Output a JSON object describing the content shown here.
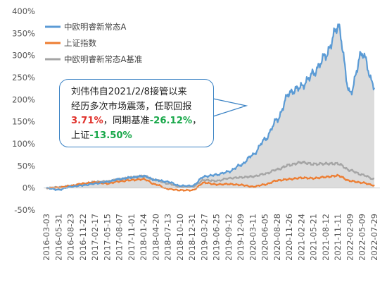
{
  "chart_data": {
    "type": "area",
    "title": "",
    "xlabel": "",
    "ylabel": "",
    "ylim": [
      -50,
      400
    ],
    "y_tick_labels": [
      "400%",
      "350%",
      "300%",
      "250%",
      "200%",
      "150%",
      "100%",
      "50%",
      "0%",
      "-50%"
    ],
    "x_tick_labels": [
      "2016-03-03",
      "2016-05-31",
      "2016-08-23",
      "2016-11-22",
      "2017-02-17",
      "2017-05-15",
      "2017-08-07",
      "2017-11-01",
      "2018-01-24",
      "2018-04-20",
      "2018-07-13",
      "2018-10-10",
      "2018-12-31",
      "2019-03-27",
      "2019-06-25",
      "2019-09-12",
      "2019-12-09",
      "2020-03-11",
      "2020-06-05",
      "2020-08-28",
      "2020-11-26",
      "2021-02-24",
      "2021-05-21",
      "2021-08-12",
      "2021-11-11",
      "2022-02-09",
      "2022-05-09",
      "2022-07-29"
    ],
    "legend_position": "top-left",
    "grid": false,
    "series": [
      {
        "name": "中欧明睿新常态A",
        "color": "#5b9bd5",
        "fill": "#dcdcdc",
        "x": [
          "2016-03-03",
          "2016-05-31",
          "2016-08-23",
          "2016-11-22",
          "2017-02-17",
          "2017-05-15",
          "2017-08-07",
          "2017-11-01",
          "2018-01-24",
          "2018-04-20",
          "2018-07-13",
          "2018-10-10",
          "2018-12-31",
          "2019-03-27",
          "2019-06-25",
          "2019-09-12",
          "2019-12-09",
          "2020-03-11",
          "2020-06-05",
          "2020-08-28",
          "2020-11-26",
          "2021-02-24",
          "2021-05-21",
          "2021-08-12",
          "2021-11-11",
          "2022-02-09",
          "2022-05-09",
          "2022-07-29"
        ],
        "values": [
          0,
          -4,
          3,
          6,
          10,
          14,
          20,
          24,
          27,
          18,
          14,
          5,
          5,
          26,
          30,
          37,
          52,
          75,
          110,
          155,
          215,
          230,
          260,
          300,
          365,
          215,
          305,
          230
        ]
      },
      {
        "name": "上证指数",
        "color": "#ed7d31",
        "x": [
          "2016-03-03",
          "2016-05-31",
          "2016-08-23",
          "2016-11-22",
          "2017-02-17",
          "2017-05-15",
          "2017-08-07",
          "2017-11-01",
          "2018-01-24",
          "2018-04-20",
          "2018-07-13",
          "2018-10-10",
          "2018-12-31",
          "2019-03-27",
          "2019-06-25",
          "2019-09-12",
          "2019-12-09",
          "2020-03-11",
          "2020-06-05",
          "2020-08-28",
          "2020-11-26",
          "2021-02-24",
          "2021-05-21",
          "2021-08-12",
          "2021-11-11",
          "2022-02-09",
          "2022-05-09",
          "2022-07-29"
        ],
        "values": [
          0,
          1,
          5,
          10,
          13,
          10,
          15,
          18,
          20,
          8,
          -2,
          -5,
          -5,
          12,
          8,
          9,
          7,
          3,
          8,
          17,
          20,
          23,
          22,
          25,
          28,
          16,
          12,
          6
        ]
      },
      {
        "name": "中欧明睿新常态A基准",
        "color": "#a5a5a5",
        "x": [
          "2016-03-03",
          "2016-05-31",
          "2016-08-23",
          "2016-11-22",
          "2017-02-17",
          "2017-05-15",
          "2017-08-07",
          "2017-11-01",
          "2018-01-24",
          "2018-04-20",
          "2018-07-13",
          "2018-10-10",
          "2018-12-31",
          "2019-03-27",
          "2019-06-25",
          "2019-09-12",
          "2019-12-09",
          "2020-03-11",
          "2020-06-05",
          "2020-08-28",
          "2020-11-26",
          "2021-02-24",
          "2021-05-21",
          "2021-08-12",
          "2021-11-11",
          "2022-02-09",
          "2022-05-09",
          "2022-07-29"
        ],
        "values": [
          0,
          2,
          5,
          9,
          14,
          15,
          20,
          24,
          27,
          18,
          10,
          3,
          3,
          18,
          16,
          22,
          24,
          26,
          32,
          42,
          52,
          58,
          54,
          55,
          55,
          40,
          30,
          20
        ]
      }
    ]
  },
  "callout": {
    "line1": "刘伟伟自2021/2/8接管以来",
    "line2": "经历多次市场震荡，任职回报",
    "value_return": "3.71%",
    "text_benchmark": "，同期基准",
    "value_benchmark": "-26.12%",
    "text_comma": "，",
    "text_index": "上证",
    "value_index": "-13.50%",
    "red_color": "#e0312b",
    "green_color": "#19a84a"
  }
}
